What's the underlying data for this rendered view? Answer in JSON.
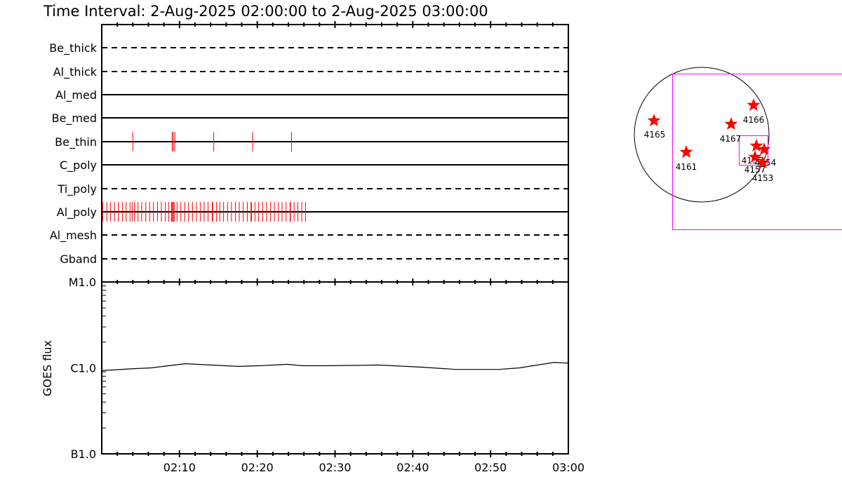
{
  "title": "Time Interval:  2-Aug-2025 02:00:00 to  2-Aug-2025 03:00:00",
  "colors": {
    "events": "#ff0000",
    "axes": "#000000",
    "fov": "#ff00ff",
    "stars": "#ff0000"
  },
  "chart_data": [
    {
      "type": "event-timeline",
      "x_range": [
        "02:00:00",
        "03:00:00"
      ],
      "rows": [
        {
          "label": "Be_thick",
          "line": "dashed",
          "events": []
        },
        {
          "label": "Al_thick",
          "line": "dashed",
          "events": []
        },
        {
          "label": "Al_med",
          "line": "solid",
          "events": []
        },
        {
          "label": "Be_med",
          "line": "solid",
          "events": []
        },
        {
          "label": "Be_thin",
          "line": "solid",
          "events": [
            "02:04:00",
            "02:09:03",
            "02:09:12",
            "02:09:24",
            "02:14:24",
            "02:19:24",
            "02:24:24"
          ]
        },
        {
          "label": "C_poly",
          "line": "solid",
          "events": []
        },
        {
          "label": "Ti_poly",
          "line": "dashed",
          "events": []
        },
        {
          "label": "Al_poly",
          "line": "solid",
          "events": [
            "02:00:07",
            "02:00:40",
            "02:01:07",
            "02:01:39",
            "02:02:08",
            "02:02:39",
            "02:03:08",
            "02:03:38",
            "02:03:55",
            "02:04:13",
            "02:04:40",
            "02:05:08",
            "02:05:40",
            "02:06:10",
            "02:06:39",
            "02:07:10",
            "02:07:40",
            "02:08:11",
            "02:08:36",
            "02:08:58",
            "02:09:05",
            "02:09:12",
            "02:09:19",
            "02:09:41",
            "02:10:10",
            "02:10:41",
            "02:11:10",
            "02:11:40",
            "02:12:11",
            "02:12:40",
            "02:13:10",
            "02:13:40",
            "02:14:12",
            "02:14:16",
            "02:14:46",
            "02:15:11",
            "02:15:40",
            "02:16:11",
            "02:16:41",
            "02:17:11",
            "02:17:41",
            "02:18:12",
            "02:18:43",
            "02:19:11",
            "02:19:15",
            "02:19:42",
            "02:20:11",
            "02:20:41",
            "02:21:12",
            "02:21:43",
            "02:22:12",
            "02:22:43",
            "02:23:11",
            "02:23:42",
            "02:24:13",
            "02:24:16",
            "02:24:44",
            "02:25:13",
            "02:25:43",
            "02:26:12"
          ]
        },
        {
          "label": "Al_mesh",
          "line": "dashed",
          "events": []
        },
        {
          "label": "Gband",
          "line": "dashed",
          "events": []
        }
      ]
    },
    {
      "type": "line",
      "ylabel": "GOES flux",
      "yscale": "log",
      "yticks": [
        {
          "label": "M1.0",
          "value": 1e-05
        },
        {
          "label": "C1.0",
          "value": 1e-06
        },
        {
          "label": "B1.0",
          "value": 1e-07
        }
      ],
      "ylim": [
        1e-07,
        1e-05
      ],
      "xticks": [
        "02:10",
        "02:20",
        "02:30",
        "02:40",
        "02:50",
        "03:00"
      ],
      "x": [
        "02:00:00",
        "02:04:06",
        "02:06:18",
        "02:10:48",
        "02:14:00",
        "02:17:36",
        "02:20:18",
        "02:23:54",
        "02:25:42",
        "02:29:18",
        "02:35:36",
        "02:41:00",
        "02:45:36",
        "02:51:00",
        "02:53:42",
        "02:58:12",
        "02:59:30"
      ],
      "values": [
        9.3e-07,
        9.8e-07,
        1e-06,
        1.12e-06,
        1.08e-06,
        1.04e-06,
        1.06e-06,
        1.1e-06,
        1.06e-06,
        1.06e-06,
        1.08e-06,
        1.02e-06,
        9.6e-07,
        9.6e-07,
        1e-06,
        1.16e-06,
        1.14e-06
      ]
    },
    {
      "type": "scatter",
      "points": [
        {
          "label": "4165"
        },
        {
          "label": "4161"
        },
        {
          "label": "4167"
        },
        {
          "label": "4166"
        },
        {
          "label": "4155"
        },
        {
          "label": "4154"
        },
        {
          "label": "4157"
        },
        {
          "label": "4153"
        }
      ]
    }
  ]
}
